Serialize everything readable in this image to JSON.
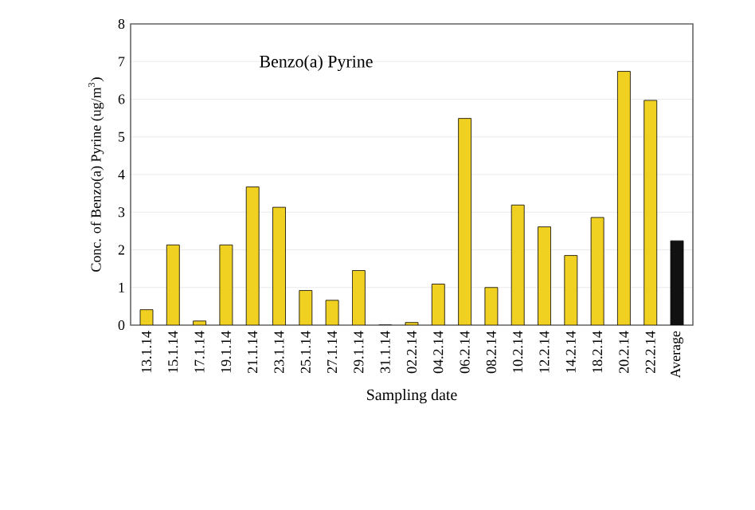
{
  "chart_data": {
    "type": "bar",
    "title": "Benzo(a) Pyrine",
    "xlabel": "Sampling date",
    "ylabel": "Conc. of Benzo(a) Pyrine (ug/m$^{3}$)",
    "categories": [
      "13.1.14",
      "15.1.14",
      "17.1.14",
      "19.1.14",
      "21.1.14",
      "23.1.14",
      "25.1.14",
      "27.1.14",
      "29.1.14",
      "31.1.14",
      "02.2.14",
      "04.2.14",
      "06.2.14",
      "08.2.14",
      "10.2.14",
      "12.2.14",
      "14.2.14",
      "18.2.14",
      "20.2.14",
      "22.2.14",
      "Average"
    ],
    "values": [
      0.41,
      2.13,
      0.11,
      2.13,
      3.67,
      3.13,
      0.92,
      0.66,
      1.45,
      0,
      0.07,
      1.09,
      5.49,
      1.0,
      3.19,
      2.61,
      1.85,
      2.86,
      6.74,
      5.97,
      2.24
    ],
    "colors": [
      "#f0d020",
      "#f0d020",
      "#f0d020",
      "#f0d020",
      "#f0d020",
      "#f0d020",
      "#f0d020",
      "#f0d020",
      "#f0d020",
      "#f0d020",
      "#f0d020",
      "#f0d020",
      "#f0d020",
      "#f0d020",
      "#f0d020",
      "#f0d020",
      "#f0d020",
      "#f0d020",
      "#f0d020",
      "#f0d020",
      "#111111"
    ],
    "ylim": [
      0,
      8
    ],
    "yticks": [
      0,
      1,
      2,
      3,
      4,
      5,
      6,
      7,
      8
    ],
    "grid": "y"
  }
}
